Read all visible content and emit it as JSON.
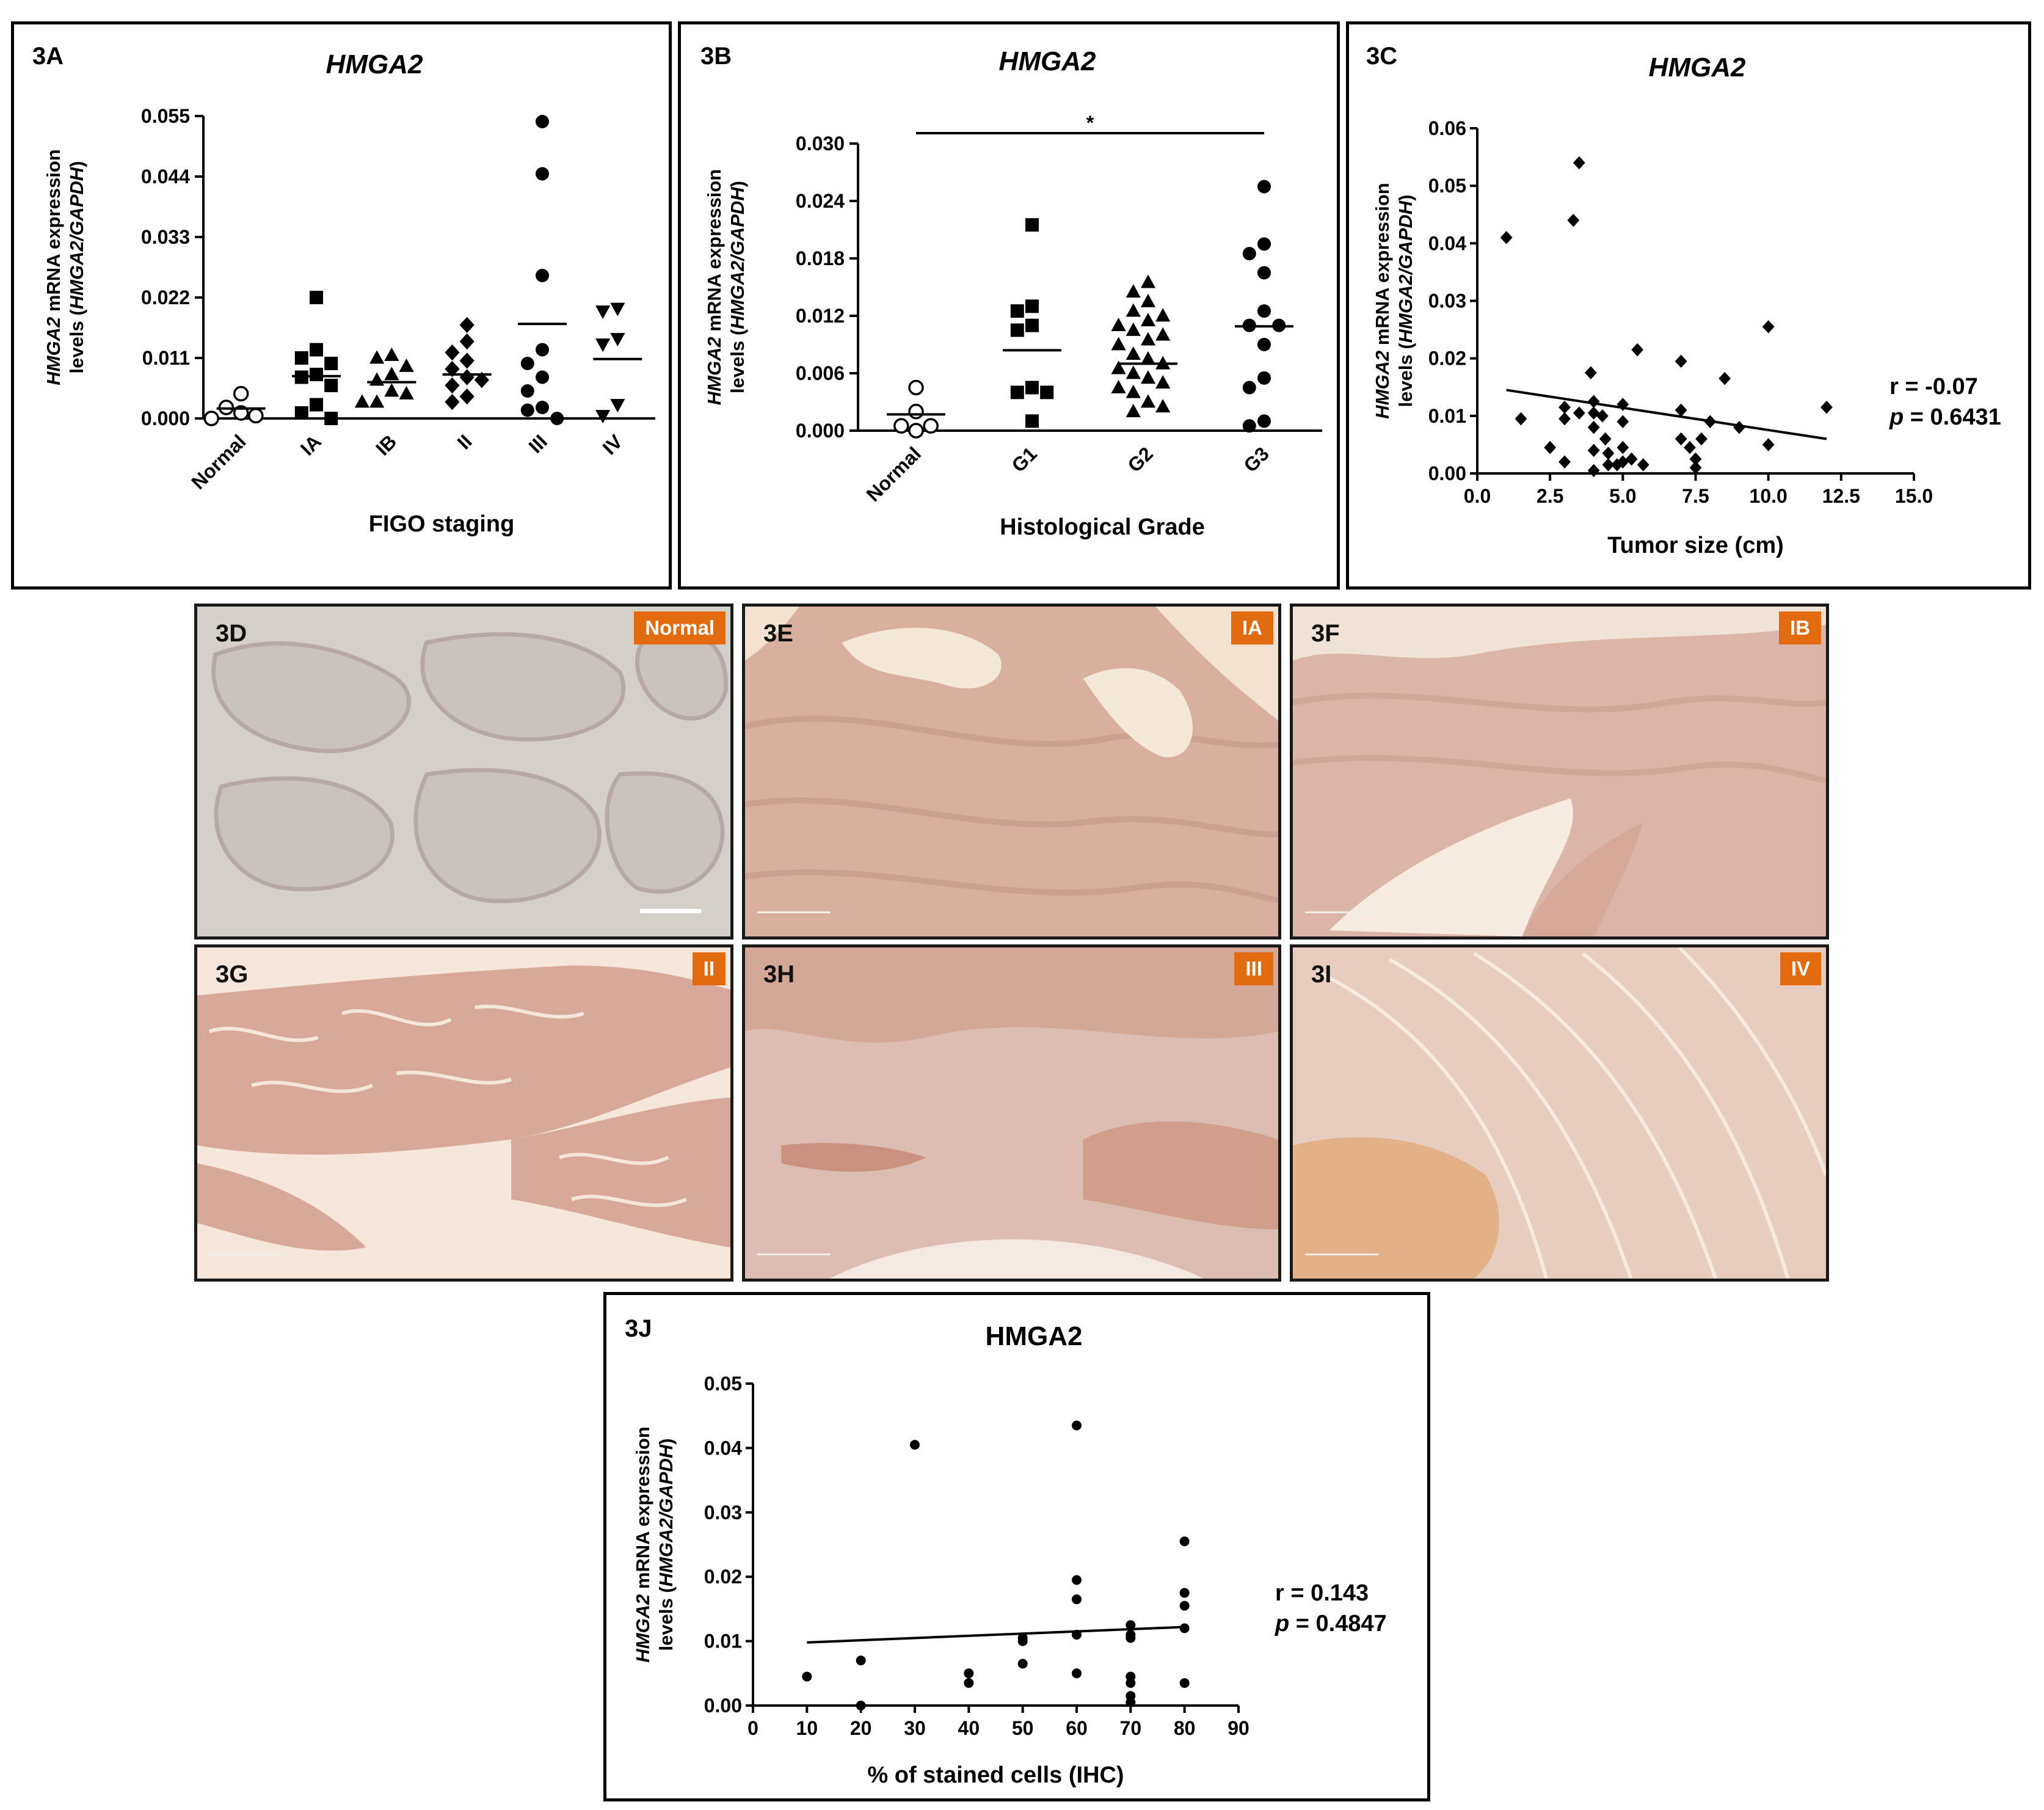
{
  "chart_data": [
    {
      "id": "3A",
      "type": "scatter",
      "panel_label": "3A",
      "title": "HMGA2",
      "xlabel": "FIGO staging",
      "ylabel_parts": [
        "HMGA2",
        " mRNA expression",
        "levels (",
        "HMGA2/GAPDH",
        ")"
      ],
      "yticks": [
        "0.000",
        "0.011",
        "0.022",
        "0.033",
        "0.044",
        "0.055"
      ],
      "ylim": [
        0,
        0.055
      ],
      "categories": [
        "Normal",
        "IA",
        "IB",
        "II",
        "III",
        "IV"
      ],
      "markers": [
        "circle-open",
        "square",
        "triangle",
        "diamond",
        "circle",
        "triangle-down"
      ],
      "values": [
        [
          0.0045,
          0.002,
          0.001,
          0.0005,
          0.0
        ],
        [
          0.022,
          0.0125,
          0.011,
          0.01,
          0.008,
          0.0075,
          0.006,
          0.0025,
          0.001,
          0.0
        ],
        [
          0.0115,
          0.011,
          0.0095,
          0.008,
          0.007,
          0.005,
          0.0045,
          0.003,
          0.003
        ],
        [
          0.017,
          0.014,
          0.012,
          0.0105,
          0.009,
          0.0075,
          0.007,
          0.006,
          0.004,
          0.003
        ],
        [
          0.054,
          0.0445,
          0.026,
          0.0125,
          0.01,
          0.0075,
          0.005,
          0.002,
          0.0015,
          0.0
        ],
        [
          0.02,
          0.0195,
          0.0145,
          0.0135,
          0.0025,
          0.0005
        ]
      ],
      "means": [
        0.0018,
        0.0077,
        0.0066,
        0.008,
        0.0172,
        0.0108
      ]
    },
    {
      "id": "3B",
      "type": "scatter",
      "panel_label": "3B",
      "title": "HMGA2",
      "xlabel": "Histological Grade",
      "ylabel_parts": [
        "HMGA2",
        " mRNA expression",
        "levels (",
        "HMGA2/GAPDH",
        ")"
      ],
      "yticks": [
        "0.000",
        "0.006",
        "0.012",
        "0.018",
        "0.024",
        "0.030"
      ],
      "ylim": [
        0,
        0.03
      ],
      "categories": [
        "Normal",
        "G1",
        "G2",
        "G3"
      ],
      "markers": [
        "circle-open",
        "square",
        "triangle",
        "circle"
      ],
      "values": [
        [
          0.0045,
          0.002,
          0.0005,
          0.0005,
          0.0
        ],
        [
          0.0215,
          0.013,
          0.0125,
          0.011,
          0.0105,
          0.0045,
          0.004,
          0.004,
          0.001
        ],
        [
          0.0155,
          0.0145,
          0.0135,
          0.0125,
          0.012,
          0.0115,
          0.011,
          0.0105,
          0.01,
          0.0095,
          0.009,
          0.008,
          0.0075,
          0.007,
          0.0065,
          0.006,
          0.0055,
          0.005,
          0.0045,
          0.004,
          0.003,
          0.0025,
          0.002
        ],
        [
          0.0255,
          0.0195,
          0.0185,
          0.0165,
          0.0125,
          0.011,
          0.011,
          0.009,
          0.0055,
          0.0045,
          0.001,
          0.0005
        ]
      ],
      "means": [
        0.0017,
        0.0084,
        0.007,
        0.0109
      ],
      "significance": {
        "from": "Normal",
        "to": "G3",
        "mark": "*"
      }
    },
    {
      "id": "3C",
      "type": "scatter",
      "panel_label": "3C",
      "title": "HMGA2",
      "xlabel": "Tumor size (cm)",
      "ylabel_parts": [
        "HMGA2",
        " mRNA expression",
        "levels (",
        "HMGA2/GAPDH",
        ")"
      ],
      "xticks": [
        "0.0",
        "2.5",
        "5.0",
        "7.5",
        "10.0",
        "12.5",
        "15.0"
      ],
      "yticks": [
        "0.00",
        "0.01",
        "0.02",
        "0.03",
        "0.04",
        "0.05",
        "0.06"
      ],
      "xlim": [
        0,
        15
      ],
      "ylim": [
        0,
        0.06
      ],
      "marker": "diamond",
      "points": [
        [
          1.0,
          0.041
        ],
        [
          1.5,
          0.0095
        ],
        [
          2.5,
          0.0045
        ],
        [
          3.0,
          0.0095
        ],
        [
          3.0,
          0.0115
        ],
        [
          3.0,
          0.002
        ],
        [
          3.3,
          0.044
        ],
        [
          3.5,
          0.054
        ],
        [
          3.5,
          0.0105
        ],
        [
          3.9,
          0.0175
        ],
        [
          4.0,
          0.0125
        ],
        [
          4.0,
          0.0105
        ],
        [
          4.0,
          0.008
        ],
        [
          4.0,
          0.004
        ],
        [
          4.0,
          0.0005
        ],
        [
          4.3,
          0.01
        ],
        [
          4.4,
          0.006
        ],
        [
          4.5,
          0.0035
        ],
        [
          4.5,
          0.0015
        ],
        [
          4.8,
          0.0015
        ],
        [
          5.0,
          0.012
        ],
        [
          5.0,
          0.009
        ],
        [
          5.0,
          0.0045
        ],
        [
          5.0,
          0.002
        ],
        [
          5.3,
          0.0025
        ],
        [
          5.5,
          0.0215
        ],
        [
          5.7,
          0.0015
        ],
        [
          7.0,
          0.0195
        ],
        [
          7.0,
          0.011
        ],
        [
          7.0,
          0.006
        ],
        [
          7.3,
          0.0045
        ],
        [
          7.5,
          0.0025
        ],
        [
          7.5,
          0.001
        ],
        [
          7.7,
          0.006
        ],
        [
          8.0,
          0.009
        ],
        [
          8.5,
          0.0165
        ],
        [
          9.0,
          0.008
        ],
        [
          10.0,
          0.0255
        ],
        [
          10.0,
          0.005
        ],
        [
          12.0,
          0.0115
        ]
      ],
      "regression": {
        "x": [
          1.0,
          12.0
        ],
        "y": [
          0.0145,
          0.006
        ]
      },
      "stat_r": "r = -0.07",
      "stat_p_symbol": "p",
      "stat_p_value": " = 0.6431"
    },
    {
      "id": "3J",
      "type": "scatter",
      "panel_label": "3J",
      "title": "HMGA2",
      "xlabel": "% of stained cells (IHC)",
      "ylabel_parts": [
        "HMGA2",
        " mRNA expression",
        "levels (",
        "HMGA2/GAPDH",
        ")"
      ],
      "xticks": [
        "0",
        "10",
        "20",
        "30",
        "40",
        "50",
        "60",
        "70",
        "80",
        "90"
      ],
      "yticks": [
        "0.00",
        "0.01",
        "0.02",
        "0.03",
        "0.04",
        "0.05"
      ],
      "xlim": [
        0,
        90
      ],
      "ylim": [
        0,
        0.05
      ],
      "marker": "circle",
      "points": [
        [
          10,
          0.0045
        ],
        [
          20,
          0.007
        ],
        [
          20,
          0.0
        ],
        [
          30,
          0.0405
        ],
        [
          40,
          0.005
        ],
        [
          40,
          0.0035
        ],
        [
          50,
          0.0105
        ],
        [
          50,
          0.01
        ],
        [
          50,
          0.0065
        ],
        [
          60,
          0.0435
        ],
        [
          60,
          0.0195
        ],
        [
          60,
          0.0165
        ],
        [
          60,
          0.011
        ],
        [
          60,
          0.005
        ],
        [
          70,
          0.0125
        ],
        [
          70,
          0.011
        ],
        [
          70,
          0.0105
        ],
        [
          70,
          0.0045
        ],
        [
          70,
          0.0035
        ],
        [
          70,
          0.0015
        ],
        [
          70,
          0.0005
        ],
        [
          80,
          0.0255
        ],
        [
          80,
          0.0175
        ],
        [
          80,
          0.0155
        ],
        [
          80,
          0.012
        ],
        [
          80,
          0.0035
        ]
      ],
      "regression": {
        "x": [
          10,
          80
        ],
        "y": [
          0.0098,
          0.0122
        ]
      },
      "stat_r": "r = 0.143",
      "stat_p_symbol": "p",
      "stat_p_value": " = 0.4847"
    }
  ],
  "ihc_panels": [
    {
      "label": "3D",
      "badge": "Normal"
    },
    {
      "label": "3E",
      "badge": "IA"
    },
    {
      "label": "3F",
      "badge": "IB"
    },
    {
      "label": "3G",
      "badge": "II"
    },
    {
      "label": "3H",
      "badge": "III"
    },
    {
      "label": "3I",
      "badge": "IV"
    }
  ]
}
